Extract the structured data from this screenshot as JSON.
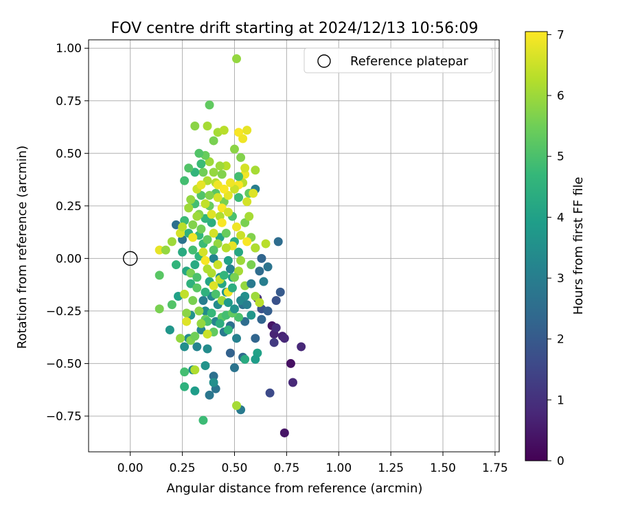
{
  "chart_data": {
    "type": "scatter",
    "title": "FOV centre drift starting at 2024/12/13 10:56:09",
    "xlabel": "Angular distance from reference (arcmin)",
    "ylabel": "Rotation from reference (arcmin)",
    "xlim": [
      -0.2,
      1.77
    ],
    "ylim": [
      -0.92,
      1.04
    ],
    "xticks": [
      "0.00",
      "0.25",
      "0.50",
      "0.75",
      "1.00",
      "1.25",
      "1.50",
      "1.75"
    ],
    "yticks": [
      "−0.75",
      "−0.50",
      "−0.25",
      "0.00",
      "0.25",
      "0.50",
      "0.75",
      "1.00"
    ],
    "grid": true,
    "legend": {
      "position": "top-right",
      "label": "Reference platepar"
    },
    "reference_point": {
      "x": 0.0,
      "y": 0.0
    },
    "colorbar": {
      "label": "Hours from first FF file",
      "range": [
        0,
        7.05
      ],
      "ticks": [
        "0",
        "1",
        "2",
        "3",
        "4",
        "5",
        "6",
        "7"
      ],
      "colormap": [
        "#440154",
        "#482878",
        "#3e4989",
        "#31688e",
        "#26828e",
        "#1f9e89",
        "#35b779",
        "#6ece58",
        "#b5de2b",
        "#fde725"
      ]
    },
    "points": [
      [
        0.74,
        -0.83,
        0.4
      ],
      [
        0.77,
        -0.5,
        0.3
      ],
      [
        0.82,
        -0.42,
        0.8
      ],
      [
        0.73,
        -0.37,
        0.7
      ],
      [
        0.74,
        -0.38,
        0.8
      ],
      [
        0.68,
        -0.32,
        0.4
      ],
      [
        0.69,
        -0.36,
        0.7
      ],
      [
        0.7,
        -0.33,
        0.9
      ],
      [
        0.69,
        -0.4,
        1.2
      ],
      [
        0.78,
        -0.59,
        0.8
      ],
      [
        0.61,
        -0.19,
        1.0
      ],
      [
        0.67,
        -0.64,
        1.6
      ],
      [
        0.7,
        -0.2,
        1.8
      ],
      [
        0.63,
        -0.24,
        1.8
      ],
      [
        0.72,
        -0.16,
        2.0
      ],
      [
        0.66,
        -0.25,
        2.1
      ],
      [
        0.63,
        -0.29,
        2.3
      ],
      [
        0.6,
        -0.38,
        2.3
      ],
      [
        0.54,
        -0.47,
        2.4
      ],
      [
        0.48,
        -0.45,
        2.2
      ],
      [
        0.54,
        -0.22,
        2.6
      ],
      [
        0.55,
        -0.3,
        2.5
      ],
      [
        0.5,
        -0.52,
        2.7
      ],
      [
        0.4,
        -0.56,
        2.6
      ],
      [
        0.41,
        -0.62,
        2.7
      ],
      [
        0.38,
        -0.65,
        2.8
      ],
      [
        0.53,
        -0.72,
        2.9
      ],
      [
        0.62,
        -0.06,
        2.5
      ],
      [
        0.66,
        -0.04,
        2.7
      ],
      [
        0.71,
        0.08,
        2.5
      ],
      [
        0.63,
        0.0,
        2.3
      ],
      [
        0.22,
        0.16,
        2.6
      ],
      [
        0.25,
        0.09,
        2.7
      ],
      [
        0.35,
        -0.2,
        3.0
      ],
      [
        0.41,
        -0.3,
        3.2
      ],
      [
        0.45,
        -0.35,
        2.9
      ],
      [
        0.28,
        -0.38,
        3.4
      ],
      [
        0.32,
        -0.42,
        3.2
      ],
      [
        0.26,
        -0.42,
        3.5
      ],
      [
        0.36,
        -0.51,
        3.6
      ],
      [
        0.48,
        -0.32,
        2.6
      ],
      [
        0.51,
        -0.38,
        3.1
      ],
      [
        0.6,
        0.05,
        3.0
      ],
      [
        0.64,
        -0.11,
        3.0
      ],
      [
        0.55,
        -0.18,
        3.5
      ],
      [
        0.58,
        -0.27,
        3.7
      ],
      [
        0.48,
        -0.05,
        3.1
      ],
      [
        0.4,
        0.0,
        3.2
      ],
      [
        0.43,
        -0.09,
        3.5
      ],
      [
        0.29,
        -0.27,
        3.6
      ],
      [
        0.36,
        -0.25,
        3.4
      ],
      [
        0.39,
        -0.18,
        3.3
      ],
      [
        0.42,
        -0.22,
        3.4
      ],
      [
        0.46,
        -0.16,
        3.7
      ],
      [
        0.34,
        -0.34,
        3.2
      ],
      [
        0.37,
        -0.43,
        3.4
      ],
      [
        0.3,
        -0.53,
        3.4
      ],
      [
        0.61,
        -0.45,
        4.0
      ],
      [
        0.6,
        -0.48,
        3.9
      ],
      [
        0.55,
        -0.48,
        4.3
      ],
      [
        0.4,
        -0.59,
        3.5
      ],
      [
        0.31,
        -0.63,
        3.9
      ],
      [
        0.26,
        -0.61,
        4.5
      ],
      [
        0.26,
        -0.54,
        4.9
      ],
      [
        0.35,
        -0.77,
        4.8
      ],
      [
        0.19,
        -0.34,
        3.7
      ],
      [
        0.23,
        -0.18,
        4.0
      ],
      [
        0.2,
        -0.22,
        5.1
      ],
      [
        0.14,
        -0.08,
        5.2
      ],
      [
        0.22,
        -0.03,
        4.6
      ],
      [
        0.25,
        0.03,
        4.3
      ],
      [
        0.29,
        -0.12,
        4.5
      ],
      [
        0.27,
        -0.06,
        4.2
      ],
      [
        0.31,
        -0.03,
        4.3
      ],
      [
        0.33,
        0.01,
        4.6
      ],
      [
        0.35,
        0.07,
        4.8
      ],
      [
        0.38,
        -0.11,
        4.1
      ],
      [
        0.44,
        -0.12,
        4.2
      ],
      [
        0.49,
        -0.09,
        3.9
      ],
      [
        0.47,
        -0.01,
        4.0
      ],
      [
        0.52,
        0.03,
        4.2
      ],
      [
        0.5,
        0.08,
        4.4
      ],
      [
        0.43,
        0.1,
        4.1
      ],
      [
        0.39,
        0.17,
        4.4
      ],
      [
        0.36,
        0.19,
        4.6
      ],
      [
        0.33,
        0.11,
        4.7
      ],
      [
        0.3,
        0.04,
        4.9
      ],
      [
        0.28,
        0.12,
        4.5
      ],
      [
        0.26,
        0.18,
        4.8
      ],
      [
        0.31,
        0.26,
        4.9
      ],
      [
        0.34,
        0.3,
        5.1
      ],
      [
        0.38,
        0.25,
        5.4
      ],
      [
        0.41,
        0.31,
        5.2
      ],
      [
        0.45,
        0.27,
        5.6
      ],
      [
        0.49,
        0.2,
        5.0
      ],
      [
        0.52,
        0.29,
        4.8
      ],
      [
        0.57,
        0.31,
        5.3
      ],
      [
        0.6,
        0.33,
        3.0
      ],
      [
        0.55,
        0.17,
        5.6
      ],
      [
        0.58,
        0.1,
        5.7
      ],
      [
        0.52,
        -0.28,
        5.0
      ],
      [
        0.47,
        -0.34,
        4.6
      ],
      [
        0.44,
        -0.28,
        5.2
      ],
      [
        0.4,
        -0.35,
        5.3
      ],
      [
        0.37,
        -0.36,
        6.5
      ],
      [
        0.36,
        -0.29,
        5.4
      ],
      [
        0.33,
        -0.25,
        5.8
      ],
      [
        0.3,
        -0.2,
        5.6
      ],
      [
        0.27,
        -0.26,
        5.8
      ],
      [
        0.27,
        -0.3,
        6.7
      ],
      [
        0.26,
        -0.17,
        6.4
      ],
      [
        0.24,
        -0.38,
        5.9
      ],
      [
        0.29,
        -0.39,
        5.7
      ],
      [
        0.31,
        -0.53,
        6.2
      ],
      [
        0.51,
        -0.7,
        6.1
      ],
      [
        0.14,
        -0.24,
        5.6
      ],
      [
        0.14,
        0.04,
        6.8
      ],
      [
        0.17,
        0.04,
        5.9
      ],
      [
        0.2,
        0.08,
        6.0
      ],
      [
        0.24,
        0.12,
        6.6
      ],
      [
        0.25,
        0.15,
        6.3
      ],
      [
        0.28,
        0.24,
        6.0
      ],
      [
        0.3,
        0.1,
        6.9
      ],
      [
        0.33,
        0.21,
        5.7
      ],
      [
        0.35,
        0.03,
        6.6
      ],
      [
        0.37,
        -0.05,
        6.2
      ],
      [
        0.36,
        -0.01,
        7.0
      ],
      [
        0.4,
        -0.13,
        6.7
      ],
      [
        0.43,
        -0.1,
        6.4
      ],
      [
        0.47,
        -0.16,
        6.9
      ],
      [
        0.52,
        -0.06,
        6.1
      ],
      [
        0.55,
        -0.13,
        5.9
      ],
      [
        0.5,
        -0.09,
        5.6
      ],
      [
        0.49,
        0.06,
        6.8
      ],
      [
        0.53,
        0.11,
        6.5
      ],
      [
        0.51,
        0.15,
        6.9
      ],
      [
        0.56,
        0.08,
        7.0
      ],
      [
        0.6,
        0.05,
        6.2
      ],
      [
        0.65,
        0.07,
        6.3
      ],
      [
        0.57,
        0.2,
        6.1
      ],
      [
        0.56,
        0.27,
        6.6
      ],
      [
        0.54,
        0.36,
        6.3
      ],
      [
        0.59,
        0.31,
        6.7
      ],
      [
        0.55,
        0.4,
        6.9
      ],
      [
        0.52,
        0.35,
        7.0
      ],
      [
        0.5,
        0.33,
        6.5
      ],
      [
        0.47,
        0.3,
        6.8
      ],
      [
        0.44,
        0.24,
        7.0
      ],
      [
        0.42,
        0.29,
        6.6
      ],
      [
        0.41,
        0.36,
        6.3
      ],
      [
        0.4,
        0.41,
        5.9
      ],
      [
        0.37,
        0.37,
        6.2
      ],
      [
        0.38,
        0.46,
        6.0
      ],
      [
        0.35,
        0.41,
        5.5
      ],
      [
        0.36,
        0.49,
        5.4
      ],
      [
        0.33,
        0.5,
        5.1
      ],
      [
        0.34,
        0.45,
        4.8
      ],
      [
        0.31,
        0.41,
        4.6
      ],
      [
        0.28,
        0.43,
        5.1
      ],
      [
        0.26,
        0.37,
        4.9
      ],
      [
        0.31,
        0.63,
        5.8
      ],
      [
        0.37,
        0.63,
        6.1
      ],
      [
        0.38,
        0.73,
        5.3
      ],
      [
        0.4,
        0.56,
        5.6
      ],
      [
        0.42,
        0.6,
        6.1
      ],
      [
        0.45,
        0.61,
        6.3
      ],
      [
        0.5,
        0.52,
        5.8
      ],
      [
        0.52,
        0.6,
        7.0
      ],
      [
        0.54,
        0.57,
        6.9
      ],
      [
        0.56,
        0.61,
        6.8
      ],
      [
        0.51,
        0.95,
        5.9
      ],
      [
        0.53,
        0.48,
        5.7
      ],
      [
        0.55,
        0.43,
        6.6
      ],
      [
        0.6,
        0.42,
        6.1
      ],
      [
        0.52,
        0.39,
        4.9
      ],
      [
        0.46,
        0.44,
        6.3
      ],
      [
        0.44,
        0.4,
        5.7
      ],
      [
        0.43,
        0.44,
        6.0
      ],
      [
        0.42,
        0.35,
        6.9
      ],
      [
        0.47,
        0.22,
        6.6
      ],
      [
        0.43,
        0.2,
        6.2
      ],
      [
        0.39,
        0.21,
        6.7
      ],
      [
        0.36,
        0.26,
        6.4
      ],
      [
        0.32,
        0.2,
        6.0
      ],
      [
        0.3,
        0.16,
        5.7
      ],
      [
        0.29,
        0.28,
        5.9
      ],
      [
        0.32,
        0.33,
        6.5
      ],
      [
        0.34,
        0.35,
        6.8
      ],
      [
        0.45,
        0.33,
        7.0
      ],
      [
        0.48,
        0.36,
        6.9
      ],
      [
        0.44,
        0.17,
        7.0
      ],
      [
        0.4,
        0.12,
        6.6
      ],
      [
        0.37,
        0.09,
        5.3
      ],
      [
        0.34,
        0.14,
        5.5
      ],
      [
        0.42,
        0.07,
        5.9
      ],
      [
        0.46,
        0.05,
        6.3
      ],
      [
        0.53,
        -0.01,
        6.0
      ],
      [
        0.58,
        -0.03,
        5.6
      ],
      [
        0.6,
        -0.18,
        6.0
      ],
      [
        0.62,
        -0.21,
        6.3
      ],
      [
        0.42,
        -0.03,
        6.5
      ],
      [
        0.39,
        -0.07,
        6.2
      ],
      [
        0.44,
        -0.2,
        6.0
      ],
      [
        0.37,
        -0.3,
        5.0
      ],
      [
        0.31,
        -0.37,
        5.5
      ],
      [
        0.34,
        -0.31,
        5.9
      ],
      [
        0.32,
        -0.14,
        5.2
      ],
      [
        0.29,
        -0.07,
        5.6
      ],
      [
        0.32,
        -0.09,
        5.0
      ],
      [
        0.36,
        -0.16,
        4.5
      ],
      [
        0.39,
        -0.26,
        4.7
      ],
      [
        0.43,
        -0.31,
        4.4
      ],
      [
        0.46,
        -0.27,
        4.9
      ],
      [
        0.49,
        -0.26,
        5.3
      ],
      [
        0.41,
        -0.17,
        5.0
      ],
      [
        0.47,
        -0.21,
        3.8
      ],
      [
        0.5,
        -0.24,
        3.6
      ],
      [
        0.53,
        -0.2,
        3.3
      ],
      [
        0.56,
        -0.22,
        3.0
      ],
      [
        0.58,
        -0.12,
        2.9
      ],
      [
        0.45,
        -0.08,
        4.6
      ],
      [
        0.49,
        -0.14,
        4.4
      ],
      [
        0.4,
        0.04,
        5.1
      ],
      [
        0.46,
        0.12,
        5.4
      ],
      [
        0.38,
        0.3,
        5.7
      ]
    ]
  }
}
